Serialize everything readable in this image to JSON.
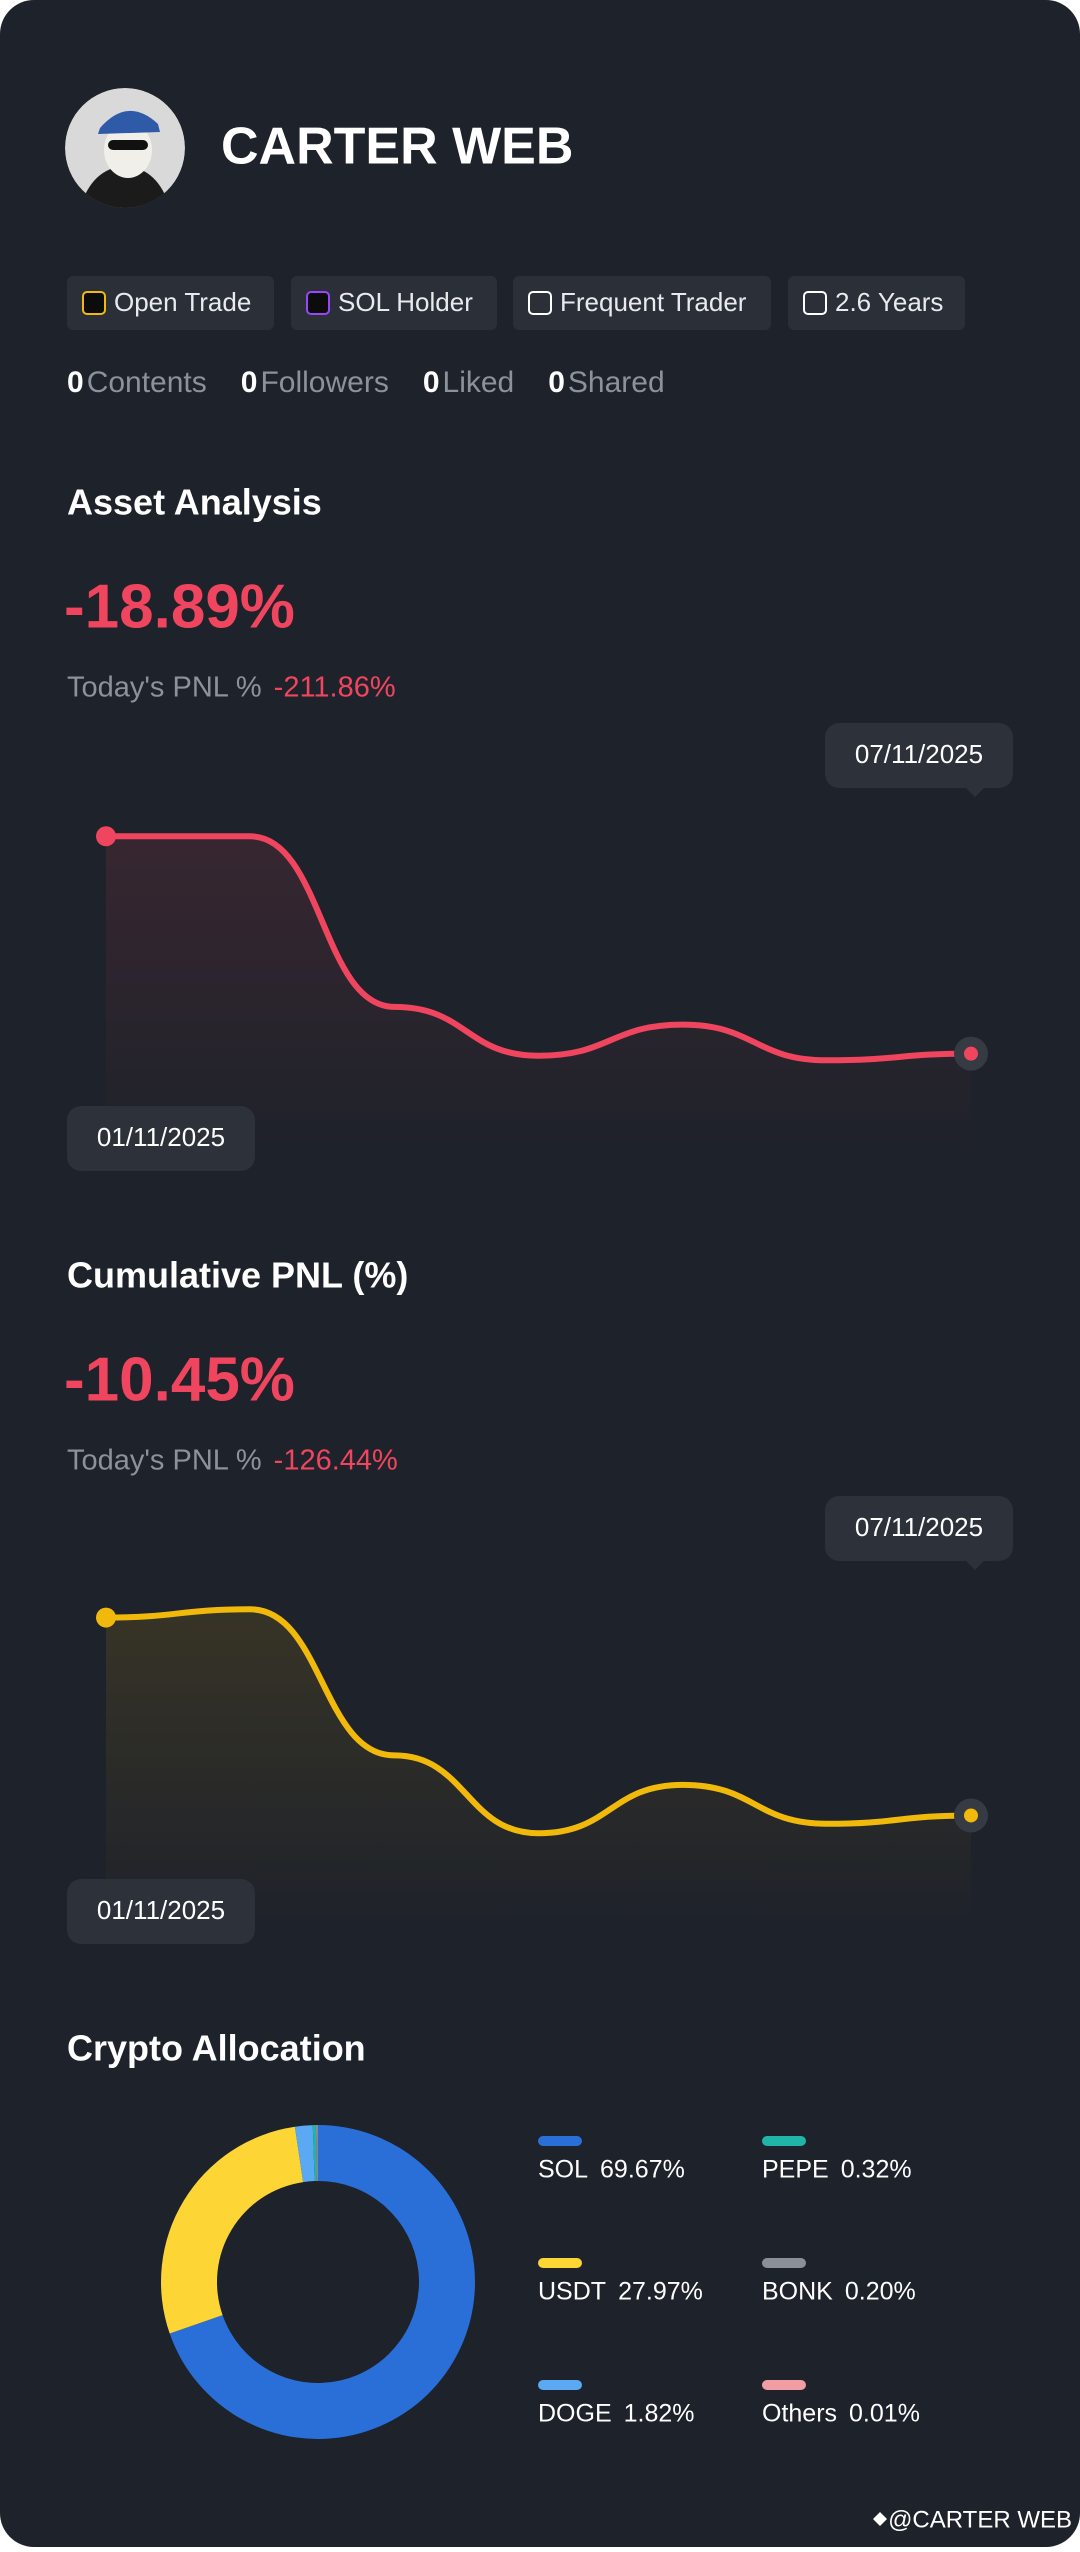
{
  "profile": {
    "name": "CARTER WEB"
  },
  "badges": [
    "Open Trade",
    "SOL Holder",
    "Frequent Trader",
    "2.6 Years"
  ],
  "stats": [
    {
      "count": 0,
      "label": "Contents"
    },
    {
      "count": 0,
      "label": "Followers"
    },
    {
      "count": 0,
      "label": "Liked"
    },
    {
      "count": 0,
      "label": "Shared"
    }
  ],
  "chart_data": [
    {
      "type": "line",
      "title": "Asset Analysis",
      "headline": "-18.89%",
      "pnl_label": "Today's PNL %",
      "pnl_value": "-211.86%",
      "categories": [
        "01/11/2025",
        null,
        null,
        null,
        null,
        null,
        "07/11/2025"
      ],
      "series": [
        {
          "color": "#f0455f",
          "values": [
            76.5,
            76.5,
            35.3,
            23.5,
            31,
            22.4,
            24
          ]
        }
      ],
      "ylim": [
        0,
        100
      ]
    },
    {
      "type": "line",
      "title": "Cumulative PNL (%)",
      "headline": "-10.45%",
      "pnl_label": "Today's PNL %",
      "pnl_value": "-126.44%",
      "categories": [
        "01/11/2025",
        null,
        null,
        null,
        null,
        null,
        "07/11/2025"
      ],
      "series": [
        {
          "color": "#f0b90b",
          "values": [
            74.5,
            76.5,
            41.2,
            22.4,
            34.1,
            24.7,
            26.7
          ]
        }
      ],
      "ylim": [
        0,
        100
      ]
    },
    {
      "type": "pie",
      "title": "Crypto Allocation",
      "categories": [
        "SOL",
        "USDT",
        "DOGE",
        "PEPE",
        "BONK",
        "Others"
      ],
      "values": [
        69.67,
        27.97,
        1.82,
        0.32,
        0.2,
        0.01
      ],
      "value_labels": [
        "69.67%",
        "27.97%",
        "1.82%",
        "0.32%",
        "0.20%",
        "0.01%"
      ],
      "colors": [
        "#2a6fd8",
        "#fdd535",
        "#5aa9f2",
        "#1fb5a8",
        "#8a8f98",
        "#f29ca4"
      ]
    }
  ],
  "footer": {
    "watermark": "@CARTER WEB"
  }
}
